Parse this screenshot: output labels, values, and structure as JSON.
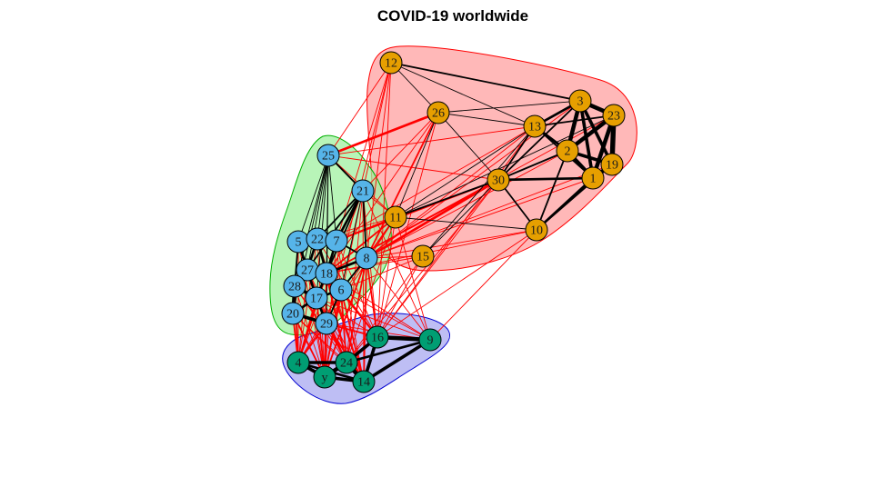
{
  "title": "COVID-19 worldwide",
  "colors": {
    "community_1_node": "#E69F00",
    "community_1_hull": "#FFA0A0",
    "community_1_hull_border": "#FF0000",
    "community_2_node": "#56B4E9",
    "community_2_hull": "#A0F0A0",
    "community_2_hull_border": "#00B000",
    "community_3_node": "#009E73",
    "community_3_hull": "#A8A8F0",
    "community_3_hull_border": "#0000D0",
    "intra_edge": "#000000",
    "inter_edge": "#FF0000"
  },
  "communities": [
    {
      "id": 1,
      "nodes": [
        "12",
        "26",
        "3",
        "23",
        "13",
        "2",
        "19",
        "1",
        "30",
        "11",
        "10",
        "15"
      ]
    },
    {
      "id": 2,
      "nodes": [
        "25",
        "21",
        "5",
        "22",
        "7",
        "8",
        "27",
        "18",
        "28",
        "6",
        "17",
        "20",
        "29"
      ]
    },
    {
      "id": 3,
      "nodes": [
        "16",
        "9",
        "4",
        "24",
        "y",
        "14"
      ]
    }
  ],
  "nodes": [
    {
      "label": "12",
      "community": 1
    },
    {
      "label": "26",
      "community": 1
    },
    {
      "label": "3",
      "community": 1
    },
    {
      "label": "23",
      "community": 1
    },
    {
      "label": "13",
      "community": 1
    },
    {
      "label": "2",
      "community": 1
    },
    {
      "label": "19",
      "community": 1
    },
    {
      "label": "1",
      "community": 1
    },
    {
      "label": "30",
      "community": 1
    },
    {
      "label": "11",
      "community": 1
    },
    {
      "label": "10",
      "community": 1
    },
    {
      "label": "15",
      "community": 1
    },
    {
      "label": "25",
      "community": 2
    },
    {
      "label": "21",
      "community": 2
    },
    {
      "label": "5",
      "community": 2
    },
    {
      "label": "22",
      "community": 2
    },
    {
      "label": "7",
      "community": 2
    },
    {
      "label": "8",
      "community": 2
    },
    {
      "label": "27",
      "community": 2
    },
    {
      "label": "18",
      "community": 2
    },
    {
      "label": "28",
      "community": 2
    },
    {
      "label": "6",
      "community": 2
    },
    {
      "label": "17",
      "community": 2
    },
    {
      "label": "20",
      "community": 2
    },
    {
      "label": "29",
      "community": 2
    },
    {
      "label": "16",
      "community": 3
    },
    {
      "label": "9",
      "community": 3
    },
    {
      "label": "4",
      "community": 3
    },
    {
      "label": "24",
      "community": 3
    },
    {
      "label": "y",
      "community": 3
    },
    {
      "label": "14",
      "community": 3
    }
  ],
  "edges": [
    [
      "3",
      "23",
      5
    ],
    [
      "3",
      "2",
      5
    ],
    [
      "3",
      "19",
      4
    ],
    [
      "3",
      "1",
      4
    ],
    [
      "23",
      "19",
      6
    ],
    [
      "23",
      "1",
      5
    ],
    [
      "23",
      "2",
      5
    ],
    [
      "2",
      "1",
      4
    ],
    [
      "2",
      "19",
      4
    ],
    [
      "1",
      "19",
      5
    ],
    [
      "13",
      "3",
      3
    ],
    [
      "13",
      "2",
      3
    ],
    [
      "13",
      "23",
      2
    ],
    [
      "13",
      "1",
      2
    ],
    [
      "30",
      "1",
      3
    ],
    [
      "30",
      "2",
      2
    ],
    [
      "30",
      "3",
      2
    ],
    [
      "30",
      "13",
      2
    ],
    [
      "30",
      "10",
      2
    ],
    [
      "10",
      "1",
      3
    ],
    [
      "10",
      "2",
      2
    ],
    [
      "10",
      "19",
      2
    ],
    [
      "26",
      "13",
      1
    ],
    [
      "26",
      "3",
      1
    ],
    [
      "26",
      "30",
      1
    ],
    [
      "26",
      "11",
      1
    ],
    [
      "12",
      "3",
      2
    ],
    [
      "12",
      "26",
      1
    ],
    [
      "12",
      "13",
      1
    ],
    [
      "11",
      "30",
      2
    ],
    [
      "11",
      "13",
      1
    ],
    [
      "11",
      "10",
      1
    ],
    [
      "15",
      "30",
      1
    ],
    [
      "15",
      "13",
      1
    ],
    [
      "11",
      "23",
      1
    ],
    [
      "25",
      "21",
      2
    ],
    [
      "25",
      "5",
      1
    ],
    [
      "25",
      "22",
      1
    ],
    [
      "25",
      "7",
      1
    ],
    [
      "25",
      "27",
      1
    ],
    [
      "25",
      "18",
      1
    ],
    [
      "25",
      "28",
      1
    ],
    [
      "25",
      "17",
      1
    ],
    [
      "25",
      "20",
      1
    ],
    [
      "25",
      "29",
      1
    ],
    [
      "21",
      "7",
      3
    ],
    [
      "21",
      "22",
      2
    ],
    [
      "21",
      "18",
      2
    ],
    [
      "21",
      "8",
      2
    ],
    [
      "21",
      "27",
      2
    ],
    [
      "21",
      "6",
      1
    ],
    [
      "5",
      "22",
      4
    ],
    [
      "5",
      "27",
      3
    ],
    [
      "5",
      "28",
      2
    ],
    [
      "22",
      "7",
      4
    ],
    [
      "22",
      "18",
      3
    ],
    [
      "22",
      "27",
      3
    ],
    [
      "7",
      "18",
      3
    ],
    [
      "7",
      "8",
      2
    ],
    [
      "8",
      "18",
      3
    ],
    [
      "8",
      "6",
      2
    ],
    [
      "27",
      "18",
      4
    ],
    [
      "27",
      "28",
      4
    ],
    [
      "27",
      "17",
      3
    ],
    [
      "18",
      "17",
      3
    ],
    [
      "18",
      "6",
      3
    ],
    [
      "28",
      "17",
      4
    ],
    [
      "28",
      "20",
      4
    ],
    [
      "6",
      "17",
      3
    ],
    [
      "17",
      "20",
      3
    ],
    [
      "17",
      "29",
      3
    ],
    [
      "20",
      "29",
      4
    ],
    [
      "29",
      "6",
      2
    ],
    [
      "16",
      "9",
      5
    ],
    [
      "16",
      "14",
      4
    ],
    [
      "16",
      "24",
      4
    ],
    [
      "9",
      "14",
      4
    ],
    [
      "9",
      "24",
      3
    ],
    [
      "4",
      "y",
      4
    ],
    [
      "4",
      "24",
      4
    ],
    [
      "y",
      "24",
      5
    ],
    [
      "y",
      "14",
      4
    ],
    [
      "24",
      "14",
      5
    ],
    [
      "4",
      "14",
      3
    ],
    [
      "12",
      "25",
      1
    ],
    [
      "12",
      "21",
      1
    ],
    [
      "12",
      "8",
      1
    ],
    [
      "12",
      "18",
      1
    ],
    [
      "12",
      "16",
      1
    ],
    [
      "12",
      "29",
      1
    ],
    [
      "26",
      "25",
      3
    ],
    [
      "26",
      "8",
      2
    ],
    [
      "26",
      "18",
      1
    ],
    [
      "26",
      "16",
      1
    ],
    [
      "26",
      "21",
      1
    ],
    [
      "13",
      "25",
      1
    ],
    [
      "13",
      "8",
      1
    ],
    [
      "13",
      "7",
      1
    ],
    [
      "13",
      "16",
      1
    ],
    [
      "30",
      "8",
      3
    ],
    [
      "30",
      "18",
      2
    ],
    [
      "30",
      "7",
      2
    ],
    [
      "30",
      "16",
      1
    ],
    [
      "30",
      "24",
      1
    ],
    [
      "30",
      "25",
      1
    ],
    [
      "11",
      "8",
      2
    ],
    [
      "11",
      "18",
      2
    ],
    [
      "11",
      "7",
      2
    ],
    [
      "11",
      "22",
      1
    ],
    [
      "11",
      "21",
      1
    ],
    [
      "11",
      "25",
      1
    ],
    [
      "11",
      "16",
      1
    ],
    [
      "11",
      "24",
      1
    ],
    [
      "11",
      "29",
      1
    ],
    [
      "15",
      "8",
      1
    ],
    [
      "15",
      "18",
      1
    ],
    [
      "15",
      "6",
      1
    ],
    [
      "15",
      "16",
      1
    ],
    [
      "15",
      "24",
      1
    ],
    [
      "10",
      "8",
      1
    ],
    [
      "10",
      "16",
      1
    ],
    [
      "10",
      "9",
      1
    ],
    [
      "10",
      "18",
      1
    ],
    [
      "2",
      "8",
      1
    ],
    [
      "1",
      "8",
      1
    ],
    [
      "3",
      "8",
      1
    ],
    [
      "23",
      "18",
      1
    ],
    [
      "19",
      "8",
      1
    ],
    [
      "9",
      "8",
      1
    ],
    [
      "9",
      "6",
      1
    ],
    [
      "9",
      "21",
      1
    ],
    [
      "9",
      "11",
      1
    ],
    [
      "16",
      "8",
      2
    ],
    [
      "16",
      "6",
      2
    ],
    [
      "16",
      "18",
      2
    ],
    [
      "16",
      "29",
      2
    ],
    [
      "16",
      "17",
      1
    ],
    [
      "16",
      "7",
      1
    ],
    [
      "16",
      "21",
      1
    ],
    [
      "16",
      "22",
      1
    ],
    [
      "24",
      "8",
      2
    ],
    [
      "24",
      "29",
      2
    ],
    [
      "24",
      "6",
      2
    ],
    [
      "24",
      "18",
      2
    ],
    [
      "24",
      "17",
      2
    ],
    [
      "24",
      "20",
      1
    ],
    [
      "24",
      "7",
      1
    ],
    [
      "24",
      "21",
      1
    ],
    [
      "24",
      "22",
      1
    ],
    [
      "24",
      "27",
      1
    ],
    [
      "24",
      "28",
      1
    ],
    [
      "4",
      "20",
      2
    ],
    [
      "4",
      "29",
      2
    ],
    [
      "4",
      "17",
      2
    ],
    [
      "4",
      "18",
      2
    ],
    [
      "4",
      "28",
      2
    ],
    [
      "4",
      "27",
      1
    ],
    [
      "4",
      "6",
      1
    ],
    [
      "4",
      "8",
      1
    ],
    [
      "4",
      "22",
      1
    ],
    [
      "4",
      "7",
      1
    ],
    [
      "4",
      "21",
      1
    ],
    [
      "4",
      "5",
      1
    ],
    [
      "y",
      "29",
      2
    ],
    [
      "y",
      "20",
      2
    ],
    [
      "y",
      "17",
      2
    ],
    [
      "y",
      "18",
      2
    ],
    [
      "y",
      "6",
      2
    ],
    [
      "y",
      "8",
      2
    ],
    [
      "y",
      "27",
      1
    ],
    [
      "y",
      "28",
      1
    ],
    [
      "y",
      "22",
      1
    ],
    [
      "y",
      "7",
      1
    ],
    [
      "y",
      "21",
      1
    ],
    [
      "y",
      "5",
      1
    ],
    [
      "14",
      "29",
      2
    ],
    [
      "14",
      "6",
      2
    ],
    [
      "14",
      "18",
      2
    ],
    [
      "14",
      "8",
      2
    ],
    [
      "14",
      "17",
      1
    ],
    [
      "14",
      "20",
      1
    ],
    [
      "14",
      "7",
      1
    ],
    [
      "14",
      "21",
      1
    ],
    [
      "14",
      "22",
      1
    ],
    [
      "14",
      "27",
      1
    ],
    [
      "14",
      "28",
      1
    ],
    [
      "9",
      "29",
      1
    ],
    [
      "9",
      "18",
      1
    ],
    [
      "9",
      "17",
      1
    ]
  ]
}
